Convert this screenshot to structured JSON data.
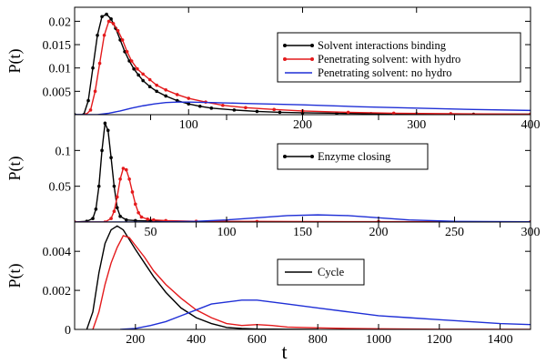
{
  "chart_data": [
    {
      "type": "line",
      "ylabel": "P(t)",
      "xlim": [
        0,
        400
      ],
      "ylim": [
        0,
        0.023
      ],
      "xticks": [
        100,
        200,
        300,
        400
      ],
      "yticks": [
        0.005,
        0.01,
        0.015,
        0.02
      ],
      "ytick_labels": [
        "0.005",
        "0.01",
        "0.015",
        "0.02"
      ],
      "legend_position": "right",
      "series": [
        {
          "name": "Solvent interactions binding",
          "color": "#000000",
          "markers": true,
          "x": [
            0,
            8,
            12,
            16,
            20,
            24,
            28,
            32,
            36,
            40,
            44,
            48,
            52,
            56,
            60,
            66,
            72,
            80,
            90,
            100,
            110,
            120,
            140,
            160,
            180,
            200,
            230,
            260,
            300,
            350,
            400
          ],
          "y": [
            0,
            0,
            0.003,
            0.01,
            0.017,
            0.021,
            0.0215,
            0.0205,
            0.0185,
            0.016,
            0.0135,
            0.0115,
            0.0098,
            0.0085,
            0.0073,
            0.006,
            0.005,
            0.004,
            0.003,
            0.0023,
            0.0018,
            0.0014,
            0.001,
            0.0007,
            0.0005,
            0.0004,
            0.0003,
            0.0002,
            0.00015,
            0.0001,
            0.0001
          ]
        },
        {
          "name": "Penetrating solvent: with hydro",
          "color": "#e41a1c",
          "markers": true,
          "x": [
            10,
            14,
            18,
            22,
            26,
            30,
            34,
            38,
            42,
            46,
            50,
            55,
            60,
            66,
            72,
            80,
            90,
            100,
            115,
            130,
            150,
            175,
            200,
            240,
            280,
            330,
            400
          ],
          "y": [
            0,
            0.001,
            0.005,
            0.011,
            0.017,
            0.02,
            0.0195,
            0.018,
            0.016,
            0.0135,
            0.0115,
            0.0098,
            0.0087,
            0.0075,
            0.0063,
            0.0053,
            0.0043,
            0.0035,
            0.0027,
            0.002,
            0.0015,
            0.0011,
            0.0008,
            0.0005,
            0.0003,
            0.0002,
            0.0001
          ]
        },
        {
          "name": "Penetrating solvent: no hydro",
          "color": "#1f2fd6",
          "markers": false,
          "x": [
            0,
            20,
            30,
            40,
            50,
            60,
            70,
            80,
            90,
            100,
            120,
            150,
            200,
            250,
            300,
            350,
            400
          ],
          "y": [
            0,
            0,
            0.0003,
            0.0008,
            0.0014,
            0.0019,
            0.0023,
            0.0026,
            0.0027,
            0.0027,
            0.0026,
            0.0024,
            0.0021,
            0.0017,
            0.0014,
            0.0011,
            0.0009
          ]
        }
      ]
    },
    {
      "type": "line",
      "ylabel": "P(t)",
      "xlim": [
        0,
        300
      ],
      "ylim": [
        0,
        0.15
      ],
      "xticks": [
        50,
        100,
        150,
        200,
        250,
        300
      ],
      "yticks": [
        0.05,
        0.1
      ],
      "ytick_labels": [
        "0.05",
        "0.1"
      ],
      "legend_position": "right",
      "series": [
        {
          "name": "Enzyme closing",
          "color": "#000000",
          "markers": true,
          "x": [
            0,
            8,
            12,
            14,
            16,
            18,
            20,
            22,
            24,
            26,
            28,
            30,
            34,
            40,
            50,
            60,
            100,
            200,
            300
          ],
          "y": [
            0,
            0.001,
            0.005,
            0.018,
            0.05,
            0.1,
            0.138,
            0.128,
            0.09,
            0.05,
            0.02,
            0.008,
            0.003,
            0.002,
            0.0015,
            0.001,
            0.0005,
            0.0002,
            0.0001
          ]
        },
        {
          "name": "",
          "color": "#e41a1c",
          "markers": true,
          "x": [
            0,
            20,
            24,
            26,
            28,
            30,
            32,
            34,
            36,
            38,
            40,
            42,
            44,
            48,
            52,
            60,
            80,
            120,
            200,
            300
          ],
          "y": [
            0,
            0,
            0.005,
            0.015,
            0.035,
            0.06,
            0.075,
            0.073,
            0.06,
            0.042,
            0.025,
            0.013,
            0.007,
            0.004,
            0.003,
            0.002,
            0.001,
            0.0008,
            0.0005,
            0.0002
          ]
        },
        {
          "name": "",
          "color": "#1f2fd6",
          "markers": false,
          "x": [
            0,
            50,
            80,
            100,
            120,
            140,
            160,
            180,
            200,
            220,
            250,
            300
          ],
          "y": [
            0,
            0,
            0.001,
            0.003,
            0.006,
            0.009,
            0.01,
            0.009,
            0.006,
            0.003,
            0.001,
            0.0003
          ]
        }
      ]
    },
    {
      "type": "line",
      "xlabel": "t",
      "ylabel": "P(t)",
      "xlim": [
        0,
        1500
      ],
      "ylim": [
        0,
        0.0055
      ],
      "xticks": [
        200,
        400,
        600,
        800,
        1000,
        1200,
        1400
      ],
      "yticks": [
        0,
        0.002,
        0.004
      ],
      "ytick_labels": [
        "0",
        "0.002",
        "0.004"
      ],
      "legend_position": "center",
      "series": [
        {
          "name": "Cycle",
          "color": "#000000",
          "markers": false,
          "x": [
            40,
            60,
            80,
            100,
            120,
            140,
            160,
            180,
            200,
            230,
            260,
            300,
            350,
            400,
            450,
            500,
            550,
            600,
            700,
            800
          ],
          "y": [
            0,
            0.0009,
            0.0029,
            0.0044,
            0.0051,
            0.0053,
            0.0051,
            0.0046,
            0.0041,
            0.0034,
            0.0027,
            0.0019,
            0.0011,
            0.0006,
            0.0003,
            0.0001,
            5e-05,
            2e-05,
            1e-05,
            0
          ]
        },
        {
          "name": "",
          "color": "#e41a1c",
          "markers": false,
          "x": [
            60,
            80,
            100,
            120,
            140,
            160,
            180,
            200,
            230,
            260,
            300,
            350,
            400,
            450,
            500,
            550,
            600,
            650,
            700,
            800,
            900,
            1000,
            1200,
            1500
          ],
          "y": [
            0,
            0.0009,
            0.0023,
            0.0034,
            0.0042,
            0.0048,
            0.0047,
            0.0043,
            0.0037,
            0.003,
            0.0023,
            0.0016,
            0.001,
            0.0006,
            0.0003,
            0.0002,
            0.00025,
            0.0002,
            0.00012,
            8e-05,
            5e-05,
            3e-05,
            1e-05,
            0
          ]
        },
        {
          "name": "",
          "color": "#1f2fd6",
          "markers": false,
          "x": [
            150,
            200,
            250,
            300,
            350,
            400,
            450,
            500,
            550,
            600,
            650,
            700,
            800,
            900,
            1000,
            1100,
            1200,
            1300,
            1400,
            1500
          ],
          "y": [
            0,
            5e-05,
            0.0002,
            0.0004,
            0.0007,
            0.001,
            0.0013,
            0.0014,
            0.0015,
            0.0015,
            0.0014,
            0.0013,
            0.0011,
            0.0009,
            0.0007,
            0.0006,
            0.0005,
            0.0004,
            0.0003,
            0.00025
          ]
        }
      ]
    }
  ]
}
